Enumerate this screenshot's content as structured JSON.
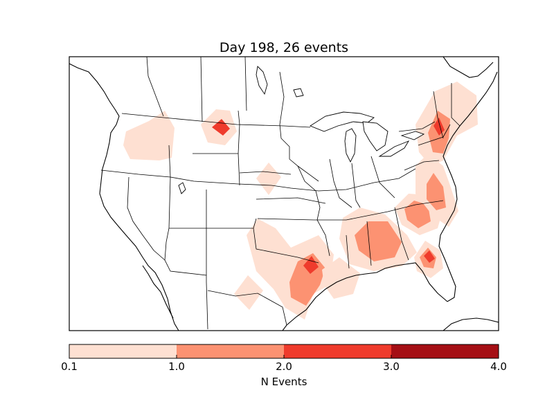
{
  "title": "Day 198, 26 events",
  "colorbar": {
    "label": "N Events",
    "ticks": [
      "0.1",
      "1.0",
      "2.0",
      "3.0",
      "4.0"
    ],
    "levels": [
      {
        "range": [
          0.1,
          1.0
        ],
        "color": "#fee0d2"
      },
      {
        "range": [
          1.0,
          2.0
        ],
        "color": "#fc9272"
      },
      {
        "range": [
          2.0,
          3.0
        ],
        "color": "#ef3b2c"
      },
      {
        "range": [
          3.0,
          4.0
        ],
        "color": "#a50f15"
      }
    ]
  },
  "map": {
    "region": "Continental United States",
    "projection": "lambert-conformal",
    "events_total": 26,
    "hotspots": [
      {
        "area": "Pacific Northwest (OR/ID)",
        "level": 1
      },
      {
        "area": "Montana",
        "level": 3
      },
      {
        "area": "Nebraska",
        "level": 1
      },
      {
        "area": "West Texas",
        "level": 1
      },
      {
        "area": "Central Texas",
        "level": 3
      },
      {
        "area": "Louisiana",
        "level": 1
      },
      {
        "area": "Mississippi / Alabama",
        "level": 2
      },
      {
        "area": "South Carolina",
        "level": 2
      },
      {
        "area": "North Florida",
        "level": 3
      },
      {
        "area": "Virginia / North Carolina",
        "level": 2
      },
      {
        "area": "New York / New England",
        "level": 3
      }
    ]
  }
}
